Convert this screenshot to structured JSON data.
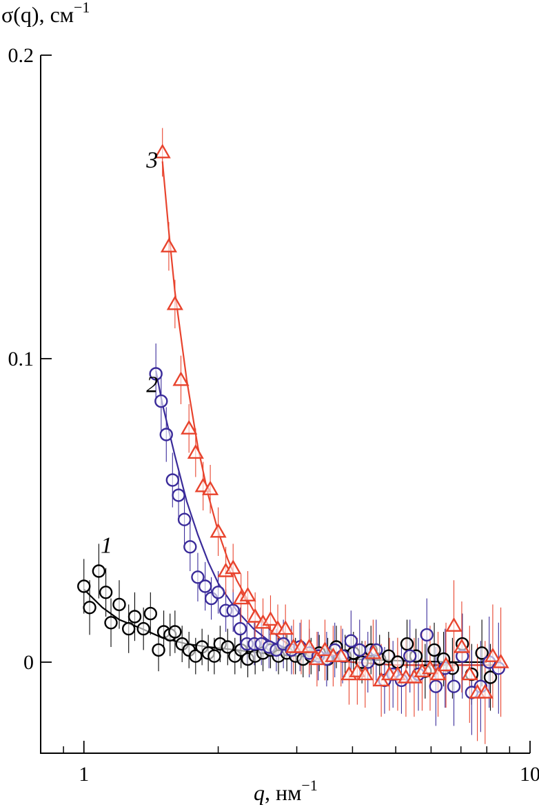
{
  "chart_data": {
    "type": "scatter",
    "ylabel": "σ(q), см",
    "ylabel_sup": "−1",
    "xlabel_var": "q",
    "xlabel_unit": ", нм",
    "xlabel_sup": "−1",
    "x_scale": "log",
    "xlim": [
      0.8,
      10
    ],
    "ylim": [
      -0.03,
      0.2
    ],
    "x_ticks": [
      {
        "value": 1,
        "label": "1"
      },
      {
        "value": 10,
        "label": "10"
      }
    ],
    "y_ticks": [
      {
        "value": 0,
        "label": "0"
      },
      {
        "value": 0.1,
        "label": "0.1"
      },
      {
        "value": 0.2,
        "label": "0.2"
      }
    ],
    "grid": false,
    "series": [
      {
        "label": "1",
        "color": "#000000",
        "marker": "circle",
        "label_pos": {
          "x": 1.09,
          "y": 0.036
        },
        "x": [
          1.0,
          1.03,
          1.08,
          1.12,
          1.15,
          1.2,
          1.26,
          1.3,
          1.36,
          1.41,
          1.47,
          1.51,
          1.56,
          1.6,
          1.66,
          1.72,
          1.78,
          1.84,
          1.9,
          1.96,
          2.02,
          2.1,
          2.18,
          2.25,
          2.33,
          2.42,
          2.52,
          2.62,
          2.73,
          2.85,
          2.98,
          3.1,
          3.23,
          3.37,
          3.52,
          3.68,
          3.85,
          4.02,
          4.2,
          4.4,
          4.6,
          4.82,
          5.05,
          5.3,
          5.55,
          5.82,
          6.1,
          6.4,
          6.7,
          7.05,
          7.4,
          7.8,
          8.15
        ],
        "y": [
          0.025,
          0.018,
          0.03,
          0.023,
          0.013,
          0.019,
          0.011,
          0.015,
          0.011,
          0.016,
          0.004,
          0.01,
          0.009,
          0.01,
          0.006,
          0.004,
          0.002,
          0.005,
          0.003,
          0.002,
          0.006,
          0.005,
          0.002,
          0.004,
          0.001,
          0.002,
          0.003,
          0.004,
          0.002,
          0.003,
          0.002,
          0.001,
          0.002,
          0.003,
          0.001,
          0.005,
          0.002,
          0.003,
          0.0,
          0.004,
          0.001,
          0.002,
          0.0,
          0.006,
          0.002,
          -0.003,
          0.004,
          0.001,
          -0.002,
          0.006,
          -0.004,
          0.003,
          -0.005
        ],
        "err": [
          0.009,
          0.009,
          0.009,
          0.008,
          0.008,
          0.008,
          0.008,
          0.008,
          0.007,
          0.007,
          0.007,
          0.007,
          0.007,
          0.007,
          0.006,
          0.006,
          0.006,
          0.006,
          0.006,
          0.006,
          0.006,
          0.006,
          0.006,
          0.006,
          0.006,
          0.006,
          0.006,
          0.006,
          0.006,
          0.006,
          0.006,
          0.006,
          0.006,
          0.006,
          0.007,
          0.007,
          0.007,
          0.007,
          0.007,
          0.008,
          0.008,
          0.008,
          0.008,
          0.008,
          0.009,
          0.009,
          0.009,
          0.009,
          0.01,
          0.01,
          0.01,
          0.011,
          0.011
        ],
        "fit_x": [
          1.0,
          1.1,
          1.2,
          1.35,
          1.5,
          1.7,
          1.9,
          2.2,
          2.5,
          3.0,
          3.5,
          4.0,
          5.0,
          6.0,
          7.0,
          8.0
        ],
        "fit_y": [
          0.024,
          0.018,
          0.014,
          0.011,
          0.008,
          0.006,
          0.005,
          0.004,
          0.003,
          0.002,
          0.0015,
          0.001,
          0.0005,
          0.0002,
          0.0,
          0.0
        ]
      },
      {
        "label": "2",
        "color": "#3a2b9a",
        "marker": "circle",
        "label_pos": {
          "x": 1.38,
          "y": 0.089
        },
        "x": [
          1.45,
          1.49,
          1.53,
          1.58,
          1.63,
          1.68,
          1.73,
          1.8,
          1.87,
          1.93,
          2.0,
          2.08,
          2.16,
          2.24,
          2.32,
          2.41,
          2.5,
          2.6,
          2.7,
          2.8,
          2.92,
          3.05,
          3.2,
          3.35,
          3.5,
          3.65,
          3.8,
          3.97,
          4.15,
          4.33,
          4.52,
          4.72,
          4.93,
          5.15,
          5.38,
          5.62,
          5.87,
          6.15,
          6.45,
          6.75,
          7.05,
          7.4,
          7.75,
          8.1,
          8.5
        ],
        "y": [
          0.095,
          0.086,
          0.075,
          0.06,
          0.055,
          0.047,
          0.038,
          0.028,
          0.025,
          0.021,
          0.023,
          0.017,
          0.017,
          0.011,
          0.006,
          0.006,
          0.006,
          0.005,
          0.004,
          0.006,
          0.004,
          0.005,
          0.003,
          0.002,
          0.001,
          0.004,
          0.002,
          0.007,
          0.004,
          0.0,
          0.004,
          -0.006,
          -0.004,
          -0.006,
          0.002,
          -0.004,
          0.009,
          -0.008,
          -0.002,
          -0.008,
          0.002,
          -0.01,
          -0.008,
          0.0,
          -0.002
        ],
        "err": [
          0.01,
          0.01,
          0.009,
          0.009,
          0.009,
          0.008,
          0.008,
          0.008,
          0.008,
          0.007,
          0.007,
          0.007,
          0.007,
          0.007,
          0.007,
          0.007,
          0.007,
          0.007,
          0.007,
          0.008,
          0.008,
          0.008,
          0.008,
          0.008,
          0.009,
          0.009,
          0.009,
          0.01,
          0.01,
          0.01,
          0.01,
          0.011,
          0.011,
          0.011,
          0.012,
          0.012,
          0.012,
          0.013,
          0.013,
          0.013,
          0.014,
          0.014,
          0.015,
          0.015,
          0.015
        ],
        "fit_x": [
          1.45,
          1.5,
          1.6,
          1.7,
          1.8,
          1.9,
          2.0,
          2.2,
          2.4,
          2.6,
          2.8,
          3.0,
          3.5,
          4.0,
          5.0,
          6.0,
          7.0,
          8.5
        ],
        "fit_y": [
          0.096,
          0.085,
          0.068,
          0.053,
          0.042,
          0.033,
          0.026,
          0.017,
          0.011,
          0.007,
          0.005,
          0.003,
          0.001,
          0.0,
          -0.001,
          -0.001,
          -0.001,
          -0.001
        ]
      },
      {
        "label": "3",
        "color": "#e8432d",
        "marker": "triangle",
        "label_pos": {
          "x": 1.38,
          "y": 0.163
        },
        "x": [
          1.5,
          1.55,
          1.6,
          1.65,
          1.72,
          1.78,
          1.85,
          1.92,
          2.0,
          2.08,
          2.16,
          2.25,
          2.33,
          2.42,
          2.52,
          2.62,
          2.72,
          2.83,
          2.95,
          3.07,
          3.2,
          3.33,
          3.47,
          3.62,
          3.77,
          3.93,
          4.1,
          4.27,
          4.45,
          4.64,
          4.84,
          5.05,
          5.27,
          5.5,
          5.73,
          5.97,
          6.22,
          6.48,
          6.75,
          7.03,
          7.32,
          7.62,
          7.93,
          8.25,
          8.6
        ],
        "y": [
          0.168,
          0.137,
          0.118,
          0.093,
          0.077,
          0.069,
          0.058,
          0.057,
          0.043,
          0.03,
          0.031,
          0.021,
          0.022,
          0.015,
          0.013,
          0.014,
          0.011,
          0.011,
          0.005,
          0.005,
          0.005,
          0.001,
          0.004,
          0.002,
          0.002,
          -0.004,
          -0.003,
          -0.004,
          0.003,
          -0.006,
          -0.004,
          -0.004,
          -0.005,
          -0.005,
          -0.003,
          -0.002,
          -0.004,
          -0.001,
          0.012,
          0.005,
          -0.004,
          -0.01,
          -0.01,
          0.002,
          0.0
        ],
        "err": [
          0.008,
          0.008,
          0.008,
          0.008,
          0.008,
          0.008,
          0.008,
          0.008,
          0.008,
          0.008,
          0.008,
          0.008,
          0.008,
          0.008,
          0.008,
          0.008,
          0.008,
          0.008,
          0.009,
          0.009,
          0.009,
          0.009,
          0.01,
          0.01,
          0.01,
          0.01,
          0.011,
          0.011,
          0.011,
          0.012,
          0.012,
          0.012,
          0.013,
          0.013,
          0.013,
          0.014,
          0.014,
          0.014,
          0.015,
          0.015,
          0.016,
          0.016,
          0.017,
          0.017,
          0.018
        ],
        "fit_x": [
          1.5,
          1.55,
          1.6,
          1.7,
          1.8,
          1.9,
          2.0,
          2.1,
          2.2,
          2.4,
          2.6,
          2.8,
          3.0,
          3.3,
          3.6,
          4.0,
          5.0,
          6.0,
          7.0,
          8.6
        ],
        "fit_y": [
          0.165,
          0.142,
          0.122,
          0.093,
          0.071,
          0.055,
          0.043,
          0.034,
          0.027,
          0.017,
          0.011,
          0.007,
          0.004,
          0.002,
          0.001,
          0.0,
          -0.001,
          -0.001,
          -0.001,
          -0.001
        ]
      }
    ]
  }
}
